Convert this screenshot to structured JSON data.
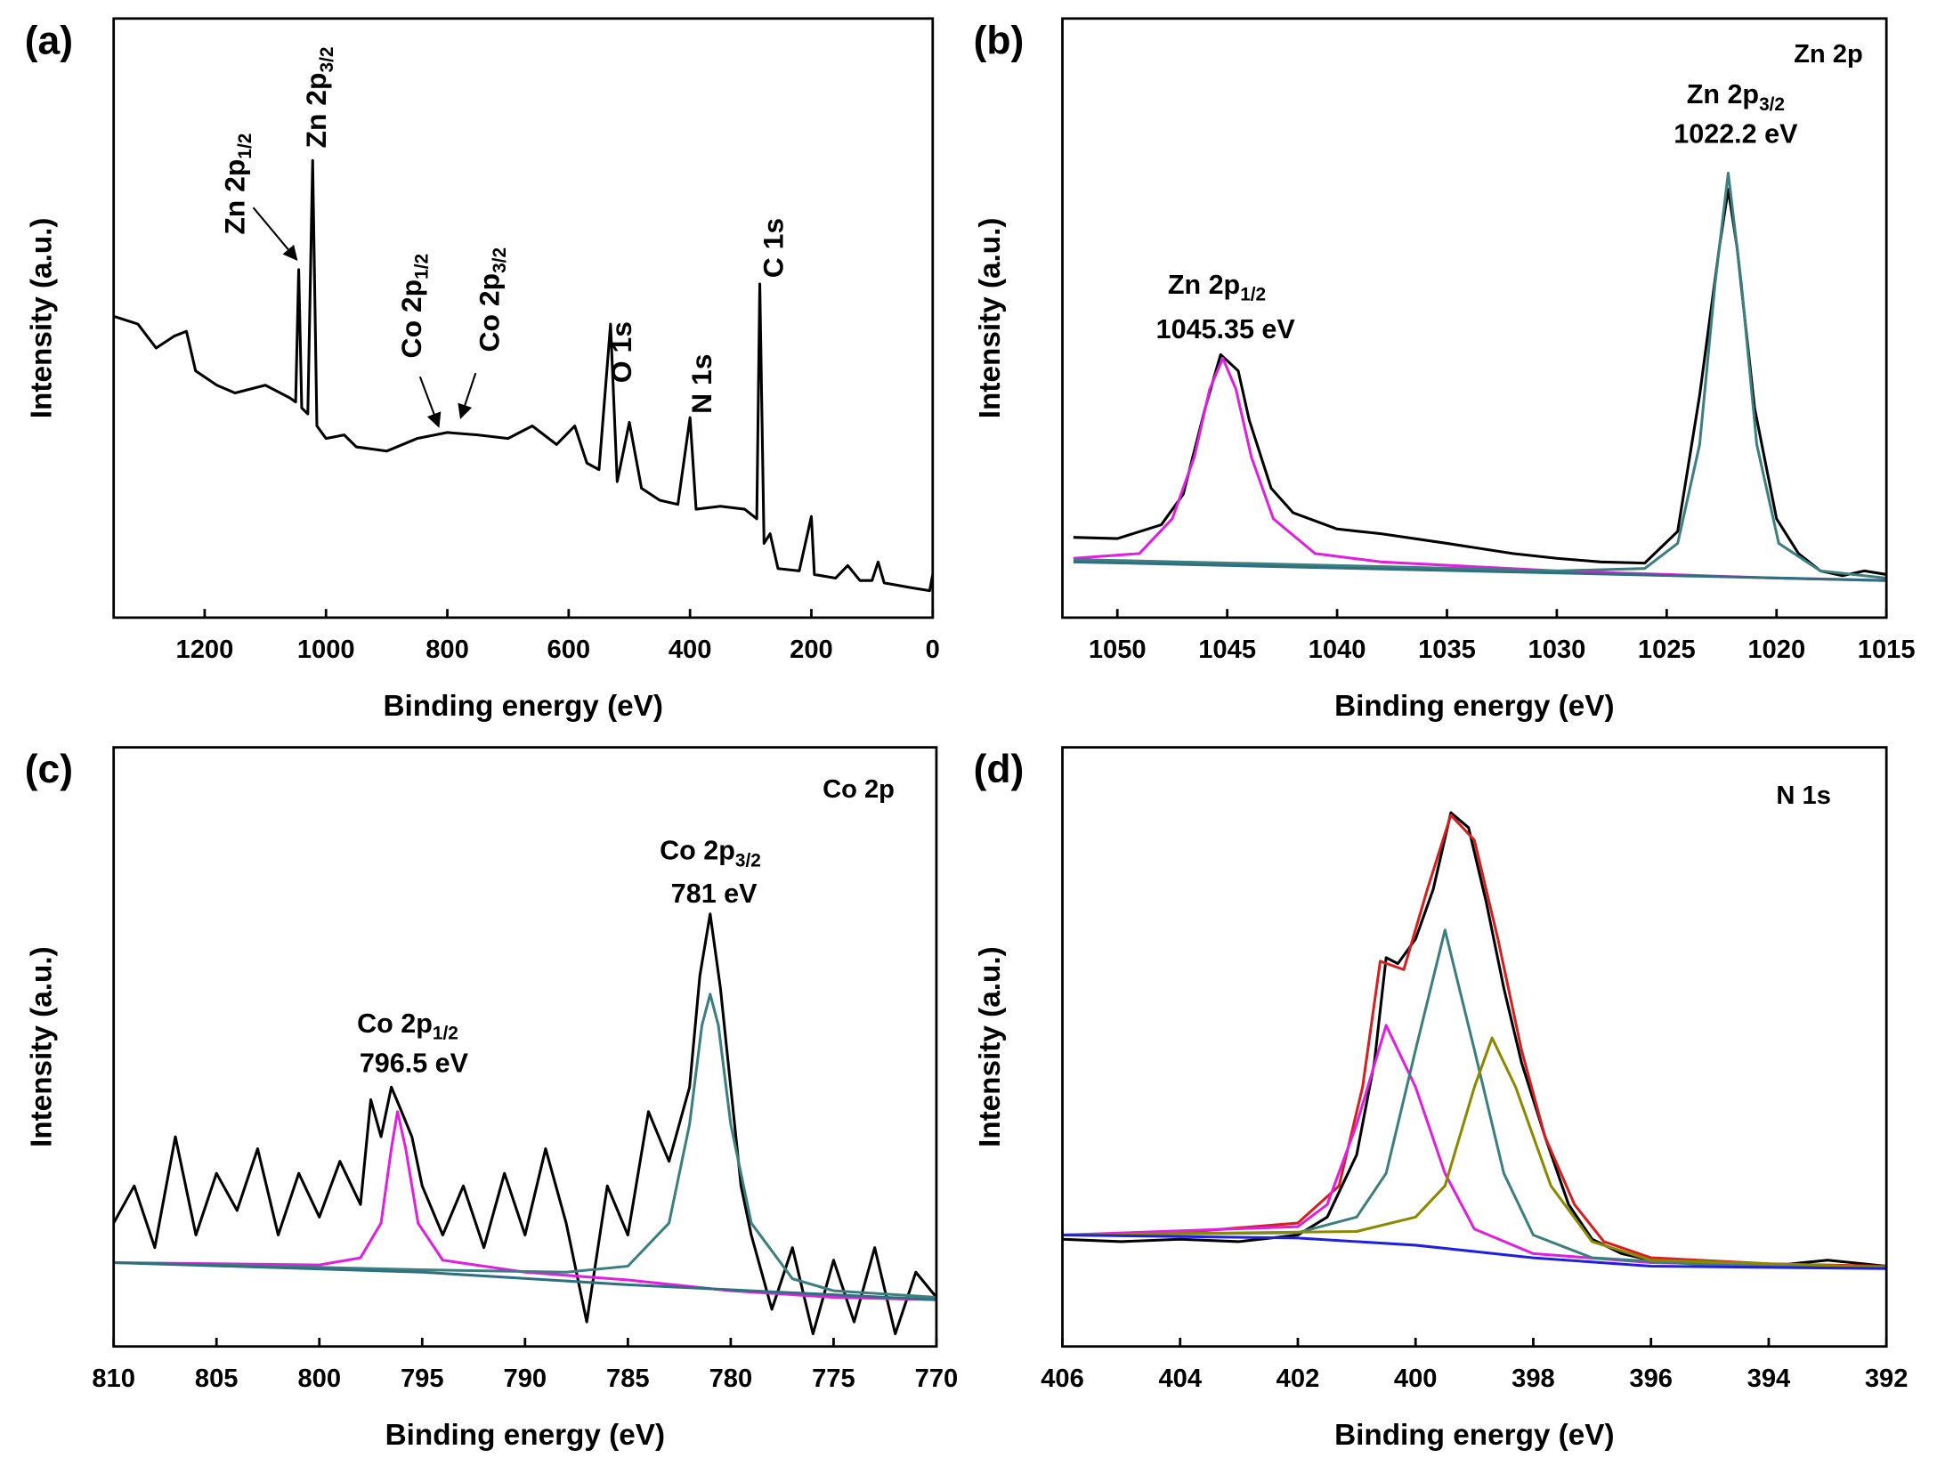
{
  "chart_data": [
    {
      "type": "line",
      "panel_label": "(a)",
      "xlabel": "Binding energy (eV)",
      "ylabel": "Intensity (a.u.)",
      "xlim": [
        1350,
        0
      ],
      "xticks": [
        1200,
        1000,
        800,
        600,
        400,
        200,
        0
      ],
      "ylim": [
        0,
        100
      ],
      "series": [
        {
          "color": "#000000",
          "x": [
            1350,
            1310,
            1280,
            1250,
            1230,
            1215,
            1180,
            1150,
            1100,
            1060,
            1050,
            1045,
            1040,
            1030,
            1022,
            1015,
            1000,
            970,
            950,
            900,
            850,
            800,
            750,
            700,
            660,
            620,
            590,
            570,
            550,
            531,
            520,
            500,
            480,
            450,
            420,
            400,
            390,
            350,
            310,
            290,
            285,
            278,
            268,
            255,
            220,
            200,
            195,
            160,
            140,
            120,
            100,
            90,
            80,
            30,
            5,
            0
          ],
          "values": [
            50.3,
            49,
            45,
            47,
            47.8,
            41.2,
            38.8,
            37.5,
            38.8,
            36.7,
            36,
            58.1,
            35,
            34,
            76.3,
            32,
            29.9,
            30.5,
            28.5,
            27.8,
            29.9,
            30.9,
            30.5,
            29.9,
            32,
            28.9,
            32,
            25.8,
            24.7,
            49,
            22.7,
            32.6,
            21.6,
            19.6,
            18.9,
            33.4,
            18.1,
            18.6,
            18.1,
            16.5,
            55.7,
            12.4,
            14,
            8.2,
            7.8,
            16.9,
            7.2,
            6.6,
            8.7,
            6.2,
            6.2,
            9.3,
            5.8,
            4.9,
            4.5,
            7.2
          ]
        }
      ],
      "annotations": [
        {
          "text": "Zn 2p",
          "sub": "1/2"
        },
        {
          "text": "Zn 2p",
          "sub": "3/2"
        },
        {
          "text": "Co 2p",
          "sub": "1/2"
        },
        {
          "text": "Co 2p",
          "sub": "3/2"
        },
        {
          "text": "O 1s"
        },
        {
          "text": "N 1s"
        },
        {
          "text": "C 1s"
        }
      ]
    },
    {
      "type": "line",
      "panel_label": "(b)",
      "xlabel": "Binding energy (eV)",
      "ylabel": "Intensity (a.u.)",
      "label": "Zn 2p",
      "xlim": [
        1052.5,
        1015
      ],
      "xticks": [
        1050,
        1045,
        1040,
        1035,
        1030,
        1025,
        1020,
        1015
      ],
      "ylim": [
        0,
        100
      ],
      "series": [
        {
          "color": "#000000",
          "x": [
            1052,
            1050,
            1048,
            1047,
            1046,
            1045.3,
            1044.5,
            1044,
            1043,
            1042,
            1040,
            1038,
            1035,
            1032,
            1030,
            1028,
            1026,
            1024.5,
            1023.5,
            1022.6,
            1022.2,
            1021.8,
            1021,
            1020,
            1019,
            1018,
            1017,
            1016,
            1015
          ],
          "values": [
            13.4,
            13.2,
            15.5,
            20.6,
            35,
            43.9,
            41.2,
            33,
            21.6,
            17.5,
            14.8,
            14,
            12.4,
            10.7,
            9.9,
            9.3,
            9.1,
            14.4,
            37.1,
            61.9,
            71.5,
            61.9,
            35,
            16.5,
            10.7,
            7.8,
            7,
            7.8,
            7.2
          ]
        },
        {
          "color": "#e020e0",
          "x": [
            1052,
            1049,
            1047.5,
            1046.5,
            1045.8,
            1045.2,
            1044.6,
            1043.9,
            1042.9,
            1041,
            1038,
            1030,
            1025,
            1020,
            1015
          ],
          "values": [
            9.9,
            10.7,
            16.5,
            26.8,
            38.1,
            43.3,
            38.1,
            26.8,
            16.5,
            10.7,
            9.3,
            7.8,
            7.2,
            6.6,
            6.2
          ]
        },
        {
          "color": "#3d7f7f",
          "x": [
            1052,
            1040,
            1030,
            1026,
            1024.5,
            1023.5,
            1022.8,
            1022.2,
            1021.6,
            1020.9,
            1019.9,
            1018,
            1015
          ],
          "values": [
            9.7,
            8.7,
            7.8,
            8.2,
            12.4,
            28.9,
            55.7,
            74.2,
            55.7,
            28.9,
            12.4,
            7.8,
            6.6
          ]
        },
        {
          "color": "#2f6f80",
          "x": [
            1052,
            1015
          ],
          "values": [
            9.3,
            6.2
          ]
        }
      ],
      "annotations": [
        {
          "text": "Zn 2p",
          "sub": "3/2"
        },
        {
          "text": "1022.2 eV"
        },
        {
          "text": "Zn 2p",
          "sub": "1/2"
        },
        {
          "text": "1045.35 eV"
        }
      ]
    },
    {
      "type": "line",
      "panel_label": "(c)",
      "xlabel": "Binding energy (eV)",
      "ylabel": "Intensity (a.u.)",
      "label": "Co 2p",
      "xlim": [
        810,
        770
      ],
      "xticks": [
        810,
        805,
        800,
        795,
        790,
        785,
        780,
        775,
        770
      ],
      "ylim": [
        0,
        100
      ],
      "series": [
        {
          "color": "#000000",
          "x": [
            810,
            809,
            808,
            807,
            806,
            805,
            804,
            803,
            802,
            801,
            800,
            799,
            798,
            797.5,
            797,
            796.5,
            796,
            795.5,
            795,
            794,
            793,
            792,
            791,
            790,
            789,
            788,
            787,
            786,
            785,
            784,
            783,
            782,
            781.5,
            781,
            780.5,
            780,
            779.5,
            779,
            778,
            777,
            776,
            775,
            774,
            773,
            772,
            771,
            770
          ],
          "values": [
            20.6,
            26.8,
            16.5,
            35,
            18.6,
            28.9,
            22.7,
            33,
            18.6,
            28.9,
            21.6,
            30.9,
            23.7,
            41.2,
            35,
            43.3,
            39.2,
            35,
            26.8,
            18.6,
            26.8,
            16.5,
            28.9,
            18.6,
            33,
            20.6,
            4.1,
            26.8,
            18.6,
            39.2,
            30.9,
            43.3,
            61.9,
            72.2,
            59.8,
            43.3,
            26.8,
            18.6,
            6.2,
            16.5,
            2.1,
            14.4,
            4.1,
            16.5,
            2.1,
            12.4,
            8.2
          ]
        },
        {
          "color": "#e020e0",
          "x": [
            810,
            800,
            798,
            797,
            796.5,
            796.2,
            795.8,
            795.2,
            794,
            790,
            785,
            780,
            775,
            770
          ],
          "values": [
            14,
            13.6,
            14.8,
            20.6,
            33,
            39.2,
            33,
            20.6,
            14.4,
            12.4,
            11.1,
            9.3,
            8.2,
            7.8
          ]
        },
        {
          "color": "#3d7f7f",
          "x": [
            810,
            795,
            788,
            785,
            783,
            782,
            781.4,
            781,
            780.6,
            780,
            779,
            777,
            775,
            770
          ],
          "values": [
            14,
            12.8,
            12.4,
            13.4,
            20.6,
            37.1,
            53.6,
            58.8,
            53.6,
            37.1,
            20.6,
            11.3,
            9.3,
            8.2
          ]
        },
        {
          "color": "#2f6f80",
          "x": [
            810,
            795,
            785,
            770
          ],
          "values": [
            14,
            12.4,
            10.3,
            7.8
          ]
        }
      ],
      "annotations": [
        {
          "text": "Co 2p",
          "sub": "3/2"
        },
        {
          "text": "781 eV"
        },
        {
          "text": "Co 2p",
          "sub": "1/2"
        },
        {
          "text": "796.5 eV"
        }
      ]
    },
    {
      "type": "line",
      "panel_label": "(d)",
      "xlabel": "Binding energy (eV)",
      "ylabel": "Intensity (a.u.)",
      "label": "N 1s",
      "xlim": [
        406,
        392
      ],
      "xticks": [
        406,
        404,
        402,
        400,
        398,
        396,
        394,
        392
      ],
      "ylim": [
        0,
        100
      ],
      "series": [
        {
          "color": "#000000",
          "x": [
            406,
            405,
            404,
            403,
            402,
            401.5,
            401,
            400.7,
            400.5,
            400.3,
            400,
            399.7,
            399.4,
            399.1,
            398.8,
            398.5,
            398.2,
            397.8,
            397.4,
            397,
            396.5,
            396,
            395,
            394,
            393,
            392
          ],
          "values": [
            17.9,
            17.5,
            17.9,
            17.5,
            18.6,
            21.6,
            32,
            47.4,
            64.9,
            63.9,
            68,
            76.3,
            89.1,
            86.6,
            74.2,
            59.8,
            47.4,
            35,
            23.7,
            17.9,
            15.5,
            14.4,
            14,
            13.4,
            14.4,
            13.4
          ]
        },
        {
          "color": "#d42020",
          "x": [
            406,
            404,
            402,
            401.3,
            400.9,
            400.6,
            400.2,
            399.8,
            399.4,
            399,
            398.6,
            398.2,
            397.8,
            397.3,
            396.8,
            396,
            394,
            392
          ],
          "values": [
            18.6,
            19,
            20.6,
            26.8,
            43.3,
            64.3,
            62.9,
            76.3,
            88.7,
            84.5,
            68,
            49.5,
            35,
            23.7,
            17.5,
            14.8,
            13.8,
            13.4
          ]
        },
        {
          "color": "#e020e0",
          "x": [
            406,
            402,
            401.5,
            401,
            400.5,
            400,
            399.5,
            399,
            398,
            396,
            392
          ],
          "values": [
            18.6,
            20,
            23.7,
            37.1,
            53.6,
            43.3,
            28.9,
            19.6,
            15.5,
            14,
            13.2
          ]
        },
        {
          "color": "#3d7f7f",
          "x": [
            406,
            402,
            401,
            400.5,
            400,
            399.5,
            399,
            398.5,
            398,
            397,
            395,
            392
          ],
          "values": [
            18.6,
            19,
            21.6,
            28.9,
            49.5,
            69.5,
            49.5,
            28.9,
            18.6,
            14.8,
            13.6,
            13.2
          ]
        },
        {
          "color": "#8a8a00",
          "x": [
            406,
            401,
            400,
            399.5,
            399,
            398.7,
            398.3,
            397.7,
            397,
            396,
            392
          ],
          "values": [
            18.6,
            19.2,
            21.6,
            26.8,
            43.3,
            51.5,
            43.3,
            26.8,
            17.5,
            14.4,
            13.2
          ]
        },
        {
          "color": "#2020e0",
          "x": [
            406,
            402,
            400,
            398,
            396,
            392
          ],
          "values": [
            18.6,
            18.1,
            16.9,
            14.8,
            13.4,
            13
          ]
        }
      ],
      "annotations": []
    }
  ]
}
